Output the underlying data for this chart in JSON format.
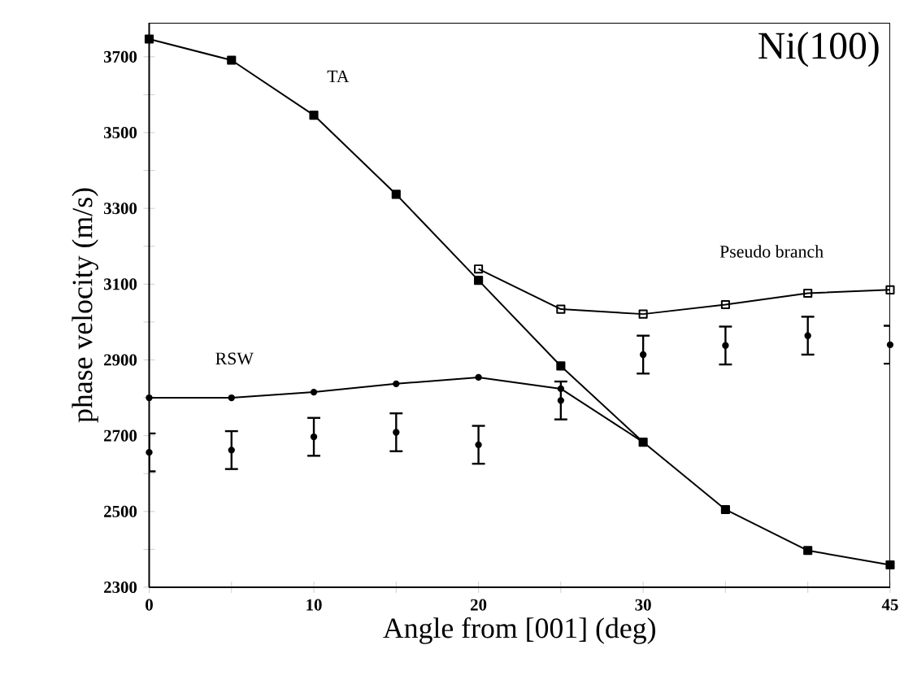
{
  "chart_data": {
    "type": "line",
    "xlabel": "Angle from [001]  (deg)",
    "ylabel": "phase velocity (m/s)",
    "xlim": [
      0,
      45
    ],
    "ylim": [
      2300,
      3790
    ],
    "xticks": [
      0,
      {
        "value": 5,
        "label": null
      },
      10,
      {
        "value": 15,
        "label": null
      },
      20,
      {
        "value": 25,
        "label": null
      },
      30,
      {
        "value": 35,
        "label": null
      },
      {
        "value": 40,
        "label": null
      },
      45
    ],
    "yticks": [
      2300,
      {
        "value": 2400,
        "label": null
      },
      2500,
      {
        "value": 2600,
        "label": null
      },
      2700,
      {
        "value": 2800,
        "label": null
      },
      2900,
      {
        "value": 3000,
        "label": null
      },
      3100,
      {
        "value": 3200,
        "label": null
      },
      3300,
      {
        "value": 3400,
        "label": null
      },
      3500,
      {
        "value": 3600,
        "label": null
      },
      3700
    ],
    "grid": false,
    "series": [
      {
        "marker": "square",
        "color": "#000000",
        "x": [
          0,
          5,
          10,
          15,
          20,
          25,
          30,
          35,
          40,
          45
        ],
        "values": [
          3747,
          3691,
          3546,
          3337,
          3110,
          2884,
          2683,
          2505,
          2397,
          2359
        ]
      },
      {
        "marker": "square",
        "color": "#000000",
        "x": [
          20,
          25,
          30,
          35,
          40,
          45
        ],
        "values": [
          3140,
          3034,
          3021,
          3046,
          3076,
          3085
        ]
      },
      {
        "marker": "circle",
        "color": "#000000",
        "x": [
          0,
          5,
          10,
          15,
          20,
          25,
          30
        ],
        "values": [
          2800,
          2800,
          2815,
          2837,
          2854,
          2824,
          2683
        ]
      },
      {
        "type": "scatter",
        "marker": "circle",
        "color": "#000000",
        "x": [
          0,
          5,
          10,
          15,
          20,
          25,
          30,
          35,
          40,
          45
        ],
        "values": [
          2656,
          2662,
          2697,
          2709,
          2676,
          2793,
          2914,
          2938,
          2964,
          2940
        ],
        "errors": [
          50,
          50,
          50,
          50,
          50,
          50,
          50,
          50,
          50,
          50
        ]
      }
    ],
    "annotations": [
      "TA",
      "RSW",
      "Pseudo branch",
      "Ni(100)"
    ]
  }
}
